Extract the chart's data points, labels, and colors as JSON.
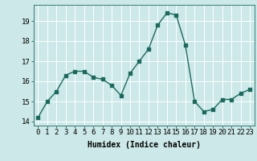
{
  "x": [
    0,
    1,
    2,
    3,
    4,
    5,
    6,
    7,
    8,
    9,
    10,
    11,
    12,
    13,
    14,
    15,
    16,
    17,
    18,
    19,
    20,
    21,
    22,
    23
  ],
  "y": [
    14.2,
    15.0,
    15.5,
    16.3,
    16.5,
    16.5,
    16.2,
    16.1,
    15.8,
    15.3,
    16.4,
    17.0,
    17.6,
    18.8,
    19.4,
    19.3,
    17.8,
    15.0,
    14.5,
    14.6,
    15.1,
    15.1,
    15.4,
    15.6
  ],
  "xlabel": "Humidex (Indice chaleur)",
  "ylim": [
    13.8,
    19.8
  ],
  "xlim": [
    -0.5,
    23.5
  ],
  "yticks": [
    14,
    15,
    16,
    17,
    18,
    19
  ],
  "xticks": [
    0,
    1,
    2,
    3,
    4,
    5,
    6,
    7,
    8,
    9,
    10,
    11,
    12,
    13,
    14,
    15,
    16,
    17,
    18,
    19,
    20,
    21,
    22,
    23
  ],
  "xtick_labels": [
    "0",
    "1",
    "2",
    "3",
    "4",
    "5",
    "6",
    "7",
    "8",
    "9",
    "10",
    "11",
    "12",
    "13",
    "14",
    "15",
    "16",
    "17",
    "18",
    "19",
    "20",
    "21",
    "22",
    "23"
  ],
  "line_color": "#1a6b5e",
  "marker": "s",
  "marker_size": 2.2,
  "bg_color": "#cce8e8",
  "grid_color": "#ffffff",
  "xlabel_fontsize": 7,
  "tick_fontsize": 6.5,
  "line_width": 1.0
}
